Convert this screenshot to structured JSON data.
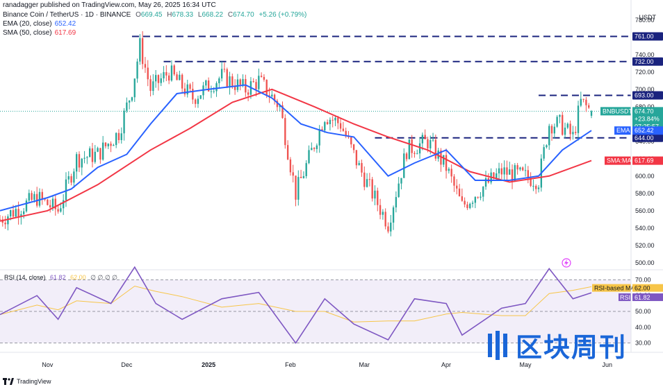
{
  "header": {
    "publisher": "ranadagger published on TradingView.com, May 26, 2025 16:34 UTC",
    "symbol": "Binance Coin / TetherUS · 1D · BINANCE",
    "o_label": "O",
    "o": "669.45",
    "h_label": "H",
    "h": "678.33",
    "l_label": "L",
    "l": "668.22",
    "c_label": "C",
    "c": "674.70",
    "change": "+5.26 (+0.79%)",
    "ema_label": "EMA (20, close)",
    "ema_value": "652.42",
    "sma_label": "SMA (50, close)",
    "sma_value": "617.69"
  },
  "currency": "USDT",
  "price_axis_ticks": [
    "780.00",
    "760.00",
    "740.00",
    "720.00",
    "700.00",
    "680.00",
    "660.00",
    "640.00",
    "620.00",
    "600.00",
    "580.00",
    "560.00",
    "540.00",
    "520.00",
    "500.00"
  ],
  "tags": {
    "resistance_761": "761.00",
    "resistance_732": "732.00",
    "resistance_693": "693.00",
    "symbol_tag": "BNBUSDT",
    "last_price": "674.70",
    "last_change": "+23.84%",
    "countdown": "07:25:57",
    "ema_tag": "EMA",
    "ema_price": "652.42",
    "support_644": "644.00",
    "sma_tag": "SMA:MA",
    "sma_price": "617.69"
  },
  "rsi": {
    "label": "RSI (14, close)",
    "value1": "61.82",
    "value2": "62.00",
    "extra": "∅ ∅ ∅ ∅",
    "axis_ticks": [
      "70.00",
      "60.00",
      "50.00",
      "40.00",
      "30.00"
    ],
    "ma_tag": "RSI-based MA",
    "ma_value": "62.00",
    "rsi_tag": "RSI",
    "rsi_value": "61.82"
  },
  "x_axis_ticks": [
    "Nov",
    "Dec",
    "2025",
    "Feb",
    "Mar",
    "Apr",
    "May",
    "Jun"
  ],
  "brand": "TradingView",
  "watermark": "区块周刊",
  "colors": {
    "up": "#26a69a",
    "down": "#ef5350",
    "ema": "#2962ff",
    "sma": "#f23645",
    "rsi": "#7e57c2",
    "rsi_ma": "#f7c548",
    "level": "#1a237e"
  },
  "chart_data": {
    "type": "candlestick",
    "title": "Binance Coin / TetherUS · 1D · BINANCE",
    "ylim": [
      495,
      795
    ],
    "x_range": [
      "2024-10-14",
      "2025-06-10"
    ],
    "horizontal_levels": [
      761,
      732,
      693,
      644
    ],
    "ohlc_anchor_points": [
      {
        "date": "2024-10-14",
        "close": 550
      },
      {
        "date": "2024-10-28",
        "close": 575
      },
      {
        "date": "2024-11-05",
        "close": 560
      },
      {
        "date": "2024-11-12",
        "close": 620
      },
      {
        "date": "2024-11-20",
        "close": 625
      },
      {
        "date": "2024-11-28",
        "close": 650
      },
      {
        "date": "2024-12-03",
        "close": 700
      },
      {
        "date": "2024-12-06",
        "close": 750
      },
      {
        "date": "2024-12-10",
        "close": 700
      },
      {
        "date": "2024-12-17",
        "close": 720
      },
      {
        "date": "2024-12-26",
        "close": 690
      },
      {
        "date": "2025-01-06",
        "close": 715
      },
      {
        "date": "2025-01-15",
        "close": 700
      },
      {
        "date": "2025-01-20",
        "close": 710
      },
      {
        "date": "2025-01-28",
        "close": 680
      },
      {
        "date": "2025-02-03",
        "close": 580
      },
      {
        "date": "2025-02-08",
        "close": 620
      },
      {
        "date": "2025-02-14",
        "close": 670
      },
      {
        "date": "2025-02-20",
        "close": 660
      },
      {
        "date": "2025-02-27",
        "close": 610
      },
      {
        "date": "2025-03-04",
        "close": 580
      },
      {
        "date": "2025-03-10",
        "close": 545
      },
      {
        "date": "2025-03-17",
        "close": 630
      },
      {
        "date": "2025-03-25",
        "close": 640
      },
      {
        "date": "2025-04-01",
        "close": 610
      },
      {
        "date": "2025-04-07",
        "close": 565
      },
      {
        "date": "2025-04-14",
        "close": 585
      },
      {
        "date": "2025-04-22",
        "close": 605
      },
      {
        "date": "2025-04-30",
        "close": 600
      },
      {
        "date": "2025-05-06",
        "close": 595
      },
      {
        "date": "2025-05-10",
        "close": 660
      },
      {
        "date": "2025-05-14",
        "close": 660
      },
      {
        "date": "2025-05-19",
        "close": 645
      },
      {
        "date": "2025-05-22",
        "close": 685
      },
      {
        "date": "2025-05-26",
        "close": 674.7
      }
    ],
    "ema20": [
      {
        "date": "2024-10-14",
        "value": 560
      },
      {
        "date": "2024-11-01",
        "value": 575
      },
      {
        "date": "2024-11-10",
        "value": 585
      },
      {
        "date": "2024-11-20",
        "value": 610
      },
      {
        "date": "2024-12-01",
        "value": 625
      },
      {
        "date": "2024-12-10",
        "value": 660
      },
      {
        "date": "2024-12-20",
        "value": 695
      },
      {
        "date": "2025-01-01",
        "value": 700
      },
      {
        "date": "2025-01-15",
        "value": 705
      },
      {
        "date": "2025-01-25",
        "value": 690
      },
      {
        "date": "2025-02-05",
        "value": 660
      },
      {
        "date": "2025-02-15",
        "value": 650
      },
      {
        "date": "2025-02-25",
        "value": 645
      },
      {
        "date": "2025-03-10",
        "value": 600
      },
      {
        "date": "2025-03-20",
        "value": 615
      },
      {
        "date": "2025-04-01",
        "value": 630
      },
      {
        "date": "2025-04-12",
        "value": 595
      },
      {
        "date": "2025-04-25",
        "value": 595
      },
      {
        "date": "2025-05-06",
        "value": 600
      },
      {
        "date": "2025-05-15",
        "value": 630
      },
      {
        "date": "2025-05-26",
        "value": 652.42
      }
    ],
    "sma50": [
      {
        "date": "2024-10-14",
        "value": 548
      },
      {
        "date": "2024-11-01",
        "value": 560
      },
      {
        "date": "2024-11-20",
        "value": 590
      },
      {
        "date": "2024-12-10",
        "value": 630
      },
      {
        "date": "2024-12-25",
        "value": 655
      },
      {
        "date": "2025-01-10",
        "value": 685
      },
      {
        "date": "2025-01-25",
        "value": 700
      },
      {
        "date": "2025-02-10",
        "value": 680
      },
      {
        "date": "2025-02-25",
        "value": 660
      },
      {
        "date": "2025-03-10",
        "value": 645
      },
      {
        "date": "2025-03-25",
        "value": 630
      },
      {
        "date": "2025-04-10",
        "value": 605
      },
      {
        "date": "2025-04-25",
        "value": 593
      },
      {
        "date": "2025-05-10",
        "value": 600
      },
      {
        "date": "2025-05-26",
        "value": 617.69
      }
    ],
    "rsi_series": [
      {
        "date": "2024-10-14",
        "value": 48
      },
      {
        "date": "2024-10-28",
        "value": 60
      },
      {
        "date": "2024-11-05",
        "value": 45
      },
      {
        "date": "2024-11-12",
        "value": 65
      },
      {
        "date": "2024-11-25",
        "value": 55
      },
      {
        "date": "2024-12-04",
        "value": 78
      },
      {
        "date": "2024-12-12",
        "value": 55
      },
      {
        "date": "2024-12-22",
        "value": 45
      },
      {
        "date": "2025-01-06",
        "value": 58
      },
      {
        "date": "2025-01-20",
        "value": 62
      },
      {
        "date": "2025-02-03",
        "value": 30
      },
      {
        "date": "2025-02-14",
        "value": 58
      },
      {
        "date": "2025-02-25",
        "value": 42
      },
      {
        "date": "2025-03-10",
        "value": 32
      },
      {
        "date": "2025-03-20",
        "value": 58
      },
      {
        "date": "2025-04-01",
        "value": 55
      },
      {
        "date": "2025-04-07",
        "value": 35
      },
      {
        "date": "2025-04-22",
        "value": 52
      },
      {
        "date": "2025-05-01",
        "value": 55
      },
      {
        "date": "2025-05-10",
        "value": 77
      },
      {
        "date": "2025-05-19",
        "value": 58
      },
      {
        "date": "2025-05-26",
        "value": 61.82
      }
    ],
    "rsi_ylim": [
      25,
      75
    ]
  }
}
